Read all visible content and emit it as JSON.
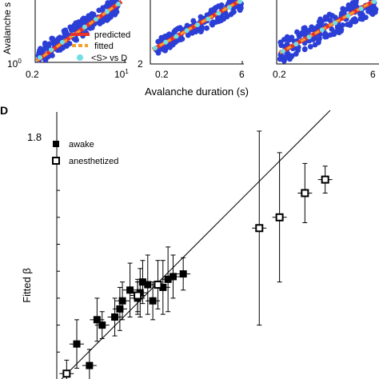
{
  "top_panels": {
    "shared_xlabel": "Avalanche duration (s)",
    "ylabel_fragment": "Avalanche s",
    "legend": {
      "predicted": "predicted",
      "fitted": "fitted",
      "s_vs_d": "<S> vs D"
    },
    "colors": {
      "scatter": "#2b3fd6",
      "predicted": "#e8322b",
      "fitted": "#f4a02a",
      "mean": "#6fe0e6"
    },
    "panels": [
      {
        "xticks": [
          "0.2",
          "10"
        ],
        "xtick_superscript": "1",
        "yticks": [
          "10"
        ],
        "ytick_superscript": "0"
      },
      {
        "xticks": [
          "0.2",
          "6"
        ],
        "yticks": [
          "2"
        ]
      },
      {
        "xticks": [
          "0.2",
          "6"
        ],
        "yticks": []
      }
    ]
  },
  "chart_data": [
    {
      "panel": "D",
      "type": "scatter",
      "title": "",
      "xlabel": "",
      "ylabel": "Fitted β",
      "ylim": [
        1.0,
        1.9
      ],
      "yticks": [
        "1.8"
      ],
      "legend_position": "top-left",
      "series": [
        {
          "name": "awake",
          "marker": "filled-square",
          "points": [
            {
              "x": 1.06,
              "y": 1.13,
              "err": 0.09
            },
            {
              "x": 1.11,
              "y": 1.05,
              "err": 0.06
            },
            {
              "x": 1.14,
              "y": 1.22,
              "err": 0.08
            },
            {
              "x": 1.16,
              "y": 1.2,
              "err": 0.05
            },
            {
              "x": 1.21,
              "y": 1.23,
              "err": 0.07
            },
            {
              "x": 1.23,
              "y": 1.26,
              "err": 0.08
            },
            {
              "x": 1.24,
              "y": 1.29,
              "err": 0.07
            },
            {
              "x": 1.27,
              "y": 1.33,
              "err": 0.1
            },
            {
              "x": 1.3,
              "y": 1.3,
              "err": 0.06
            },
            {
              "x": 1.31,
              "y": 1.32,
              "err": 0.09
            },
            {
              "x": 1.32,
              "y": 1.36,
              "err": 0.08
            },
            {
              "x": 1.34,
              "y": 1.35,
              "err": 0.11
            },
            {
              "x": 1.36,
              "y": 1.29,
              "err": 0.07
            },
            {
              "x": 1.4,
              "y": 1.34,
              "err": 0.1
            },
            {
              "x": 1.42,
              "y": 1.37,
              "err": 0.12
            },
            {
              "x": 1.44,
              "y": 1.38,
              "err": 0.08
            },
            {
              "x": 1.48,
              "y": 1.39,
              "err": 0.06
            }
          ]
        },
        {
          "name": "anesthetized",
          "marker": "open-square",
          "points": [
            {
              "x": 1.02,
              "y": 1.02,
              "err": 0.05
            },
            {
              "x": 1.3,
              "y": 1.31,
              "err": 0.06
            },
            {
              "x": 1.38,
              "y": 1.35,
              "err": 0.09
            },
            {
              "x": 1.78,
              "y": 1.56,
              "err": 0.36
            },
            {
              "x": 1.86,
              "y": 1.6,
              "err": 0.24
            },
            {
              "x": 1.96,
              "y": 1.69,
              "err": 0.11
            },
            {
              "x": 2.04,
              "y": 1.74,
              "err": 0.05
            }
          ]
        }
      ]
    }
  ],
  "panel_label": "D"
}
